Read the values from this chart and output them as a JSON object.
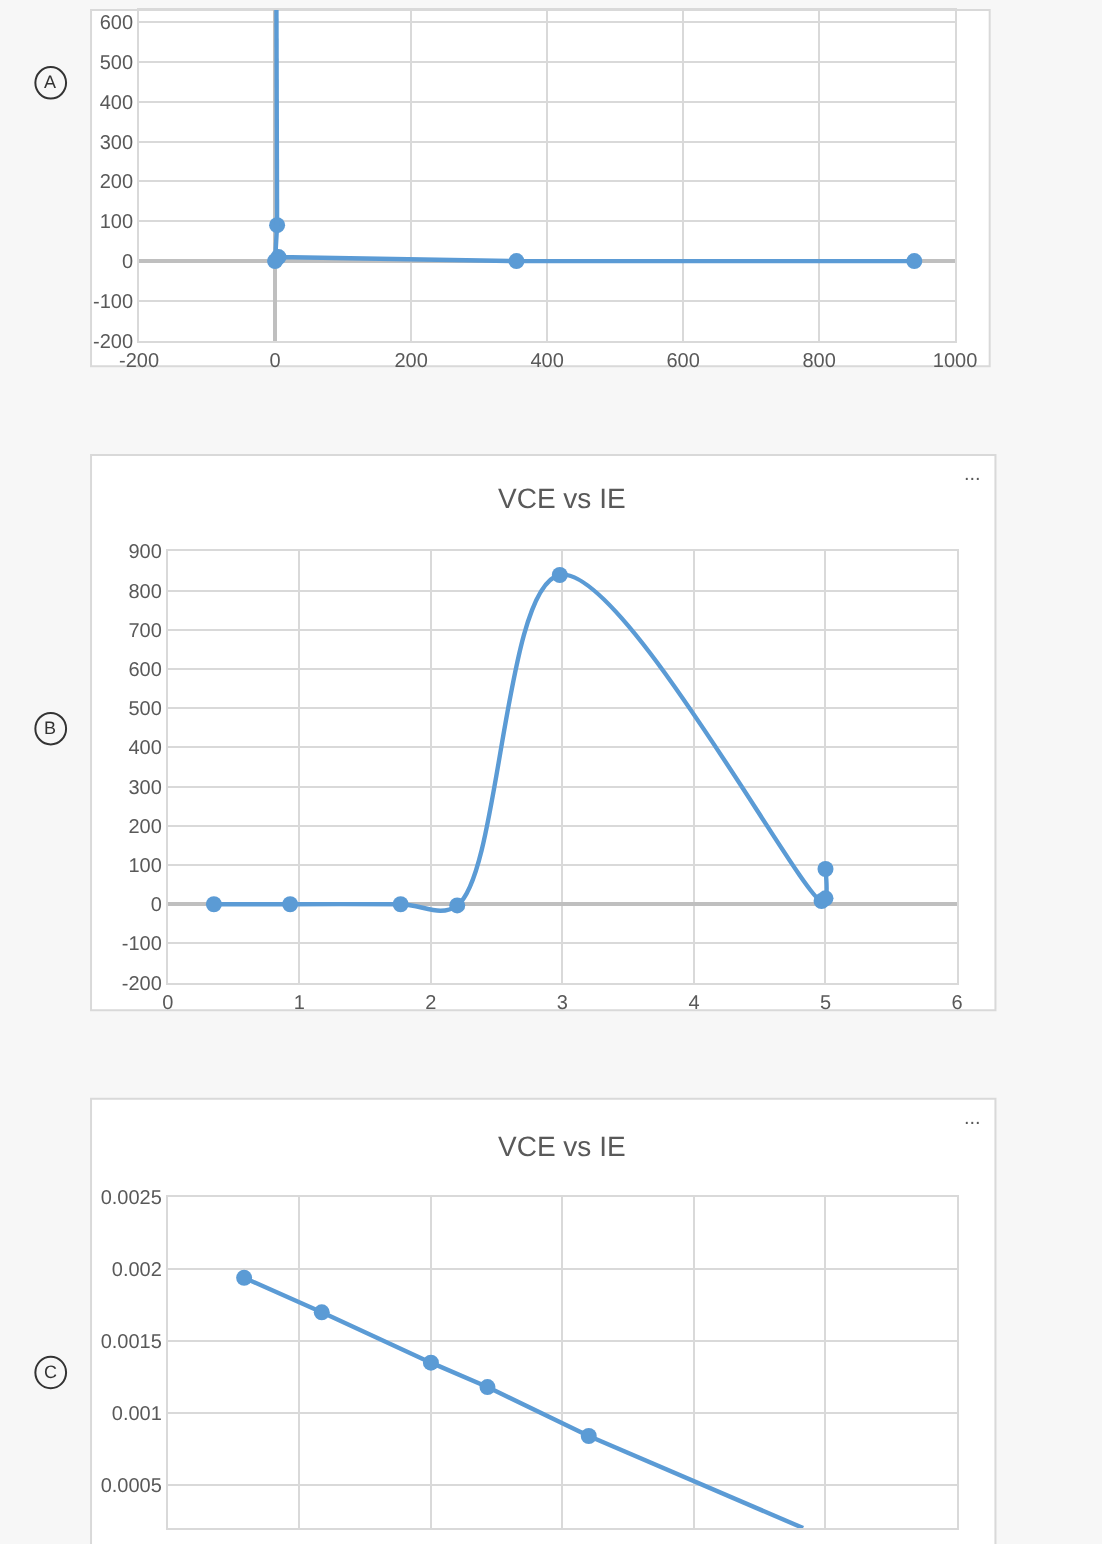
{
  "chart_data": [
    {
      "type": "line",
      "annotations": [
        "A"
      ],
      "x": [
        940,
        355,
        5,
        0,
        3
      ],
      "xlim": [
        -200,
        1000
      ],
      "ylim": [
        -200,
        630
      ],
      "xticks": [
        -200,
        0,
        200,
        400,
        600,
        800,
        1000
      ],
      "yticks": [
        -200,
        -100,
        0,
        100,
        200,
        300,
        400,
        500,
        600
      ],
      "grid": true,
      "marker": "circle",
      "series": [
        {
          "color": "#5b9bd5",
          "values": [
            0,
            0,
            10,
            0,
            90
          ]
        },
        {
          "color": "#5b9bd5",
          "x": [
            3,
            2
          ],
          "values": [
            90,
            630
          ],
          "marker": "none"
        }
      ]
    },
    {
      "type": "line",
      "title": "VCE vs IE",
      "annotations": [
        "B",
        "..."
      ],
      "x": [
        0.35,
        0.93,
        1.77,
        2.2,
        2.98,
        4.97,
        5.0,
        5.0
      ],
      "xlim": [
        0,
        6
      ],
      "ylim": [
        -200,
        900
      ],
      "xticks": [
        0,
        1,
        2,
        3,
        4,
        5,
        6
      ],
      "yticks": [
        -200,
        -100,
        0,
        100,
        200,
        300,
        400,
        500,
        600,
        700,
        800,
        900
      ],
      "grid": true,
      "marker": "circle",
      "series": [
        {
          "color": "#5b9bd5",
          "values": [
            0,
            0,
            0,
            -3,
            840,
            8,
            15,
            90
          ]
        }
      ]
    },
    {
      "type": "line",
      "title": "VCE vs IE",
      "annotations": [
        "C",
        "..."
      ],
      "x": [
        0.58,
        1.17,
        2.0,
        2.43,
        3.2
      ],
      "xlim": [
        0,
        6
      ],
      "ylim": [
        0.0002,
        0.0025
      ],
      "xticks": [
        {
          "value": 0,
          "label": null
        },
        {
          "value": 1,
          "label": null
        },
        {
          "value": 2,
          "label": null
        },
        {
          "value": 3,
          "label": null
        },
        {
          "value": 4,
          "label": null
        },
        {
          "value": 5,
          "label": null
        },
        {
          "value": 6,
          "label": null
        }
      ],
      "yticks": [
        0.0005,
        0.001,
        0.0015,
        0.002,
        0.0025
      ],
      "tick_labels": "y",
      "grid": true,
      "marker": "circle",
      "series": [
        {
          "color": "#5b9bd5",
          "values": [
            0.00194,
            0.0017,
            0.00135,
            0.00118,
            0.00084
          ]
        },
        {
          "color": "#5b9bd5",
          "x": [
            3.2,
            4.83
          ],
          "values": [
            0.00084,
            0.0002
          ],
          "marker": "none"
        }
      ]
    }
  ]
}
